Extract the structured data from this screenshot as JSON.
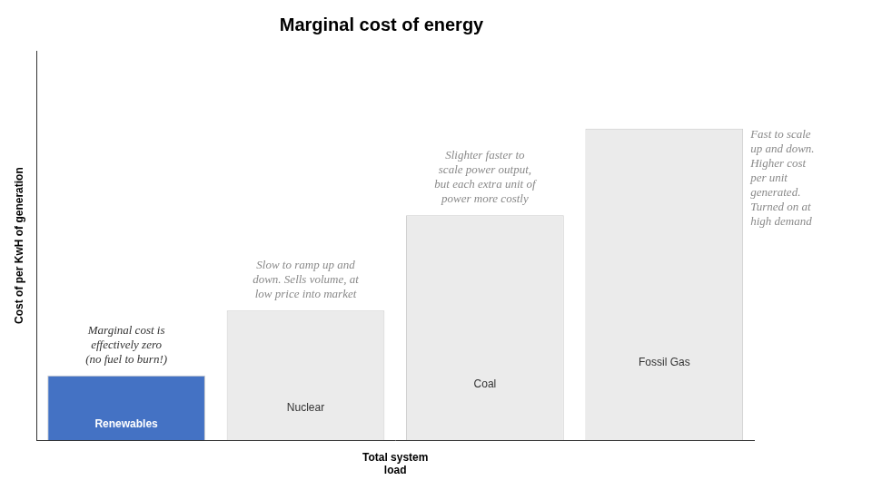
{
  "chart_data": {
    "type": "bar",
    "title": "Marginal cost of energy",
    "ylabel": "Cost of per KwH of generation",
    "xlabel": "Total system\nload",
    "categories": [
      "Renewables",
      "Nuclear",
      "Coal",
      "Fossil Gas"
    ],
    "values": [
      0.15,
      0.3,
      0.52,
      0.72
    ],
    "colors": [
      "#4472C4",
      "#EBEBEB",
      "#EBEBEB",
      "#EBEBEB"
    ],
    "ylim": [
      0,
      0.9
    ],
    "grid": false,
    "tick_labels": false,
    "annotations": [
      "Marginal cost is\neffectively zero\n(no fuel to burn!)",
      "Slow to ramp up and\ndown. Sells volume, at\nlow price into market",
      "Slighter faster to\nscale power output,\nbut each extra unit of\npower more costly",
      "Fast to scale\nup and down.\nHigher cost\nper unit\ngenerated.\nTurned on at\nhigh demand"
    ]
  }
}
